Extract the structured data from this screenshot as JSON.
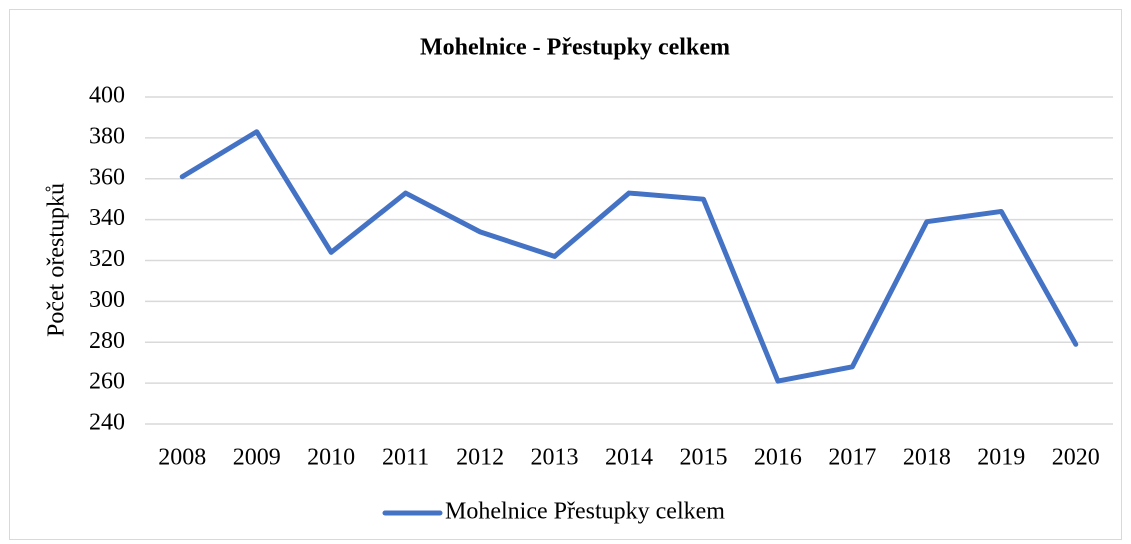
{
  "chart_data": {
    "type": "line",
    "title": "Mohelnice - Přestupky celkem",
    "y_label": "Počet ořestupků",
    "categories": [
      "2008",
      "2009",
      "2010",
      "2011",
      "2012",
      "2013",
      "2014",
      "2015",
      "2016",
      "2017",
      "2018",
      "2019",
      "2020"
    ],
    "series": [
      {
        "name": "Mohelnice Přestupky celkem",
        "color": "#4472c4",
        "values": [
          361,
          383,
          324,
          353,
          334,
          322,
          353,
          350,
          261,
          268,
          339,
          344,
          279
        ]
      }
    ],
    "ylim": [
      240,
      400
    ],
    "yticks": [
      240,
      260,
      280,
      300,
      320,
      340,
      360,
      380,
      400
    ],
    "grid": true
  }
}
